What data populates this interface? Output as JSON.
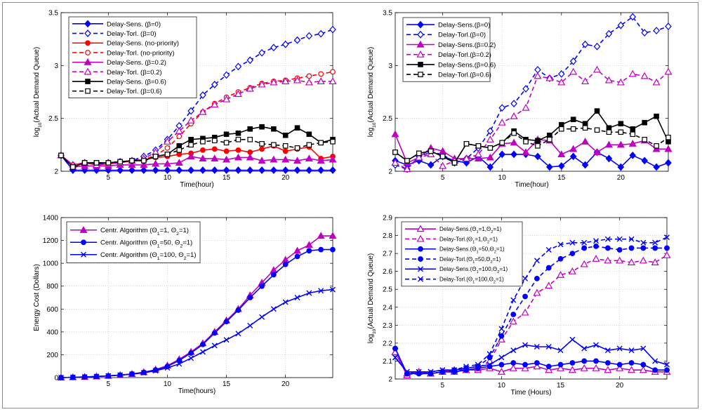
{
  "chart_data": [
    {
      "type": "line",
      "xlabel": "Time(hour)",
      "ylabel": "log10(Actual Demand Queue)",
      "ylabel_main": "log",
      "ylabel_sub": "10",
      "ylabel_rest": "(Actual Demand Queue)",
      "xlim": [
        1,
        24
      ],
      "ylim": [
        2,
        3.5
      ],
      "xticks": [
        5,
        10,
        15,
        20
      ],
      "yticks": [
        2,
        2.5,
        3,
        3.5
      ],
      "ytick_labels": [
        "2",
        "2.5",
        "3",
        "3.5"
      ],
      "grid": true,
      "legend_position": "top-left",
      "series": [
        {
          "name": "Delay-Sens. (β=0)",
          "color": "#0000ff",
          "dash": "solid",
          "marker": "diamond",
          "values": [
            2.15,
            2.01,
            2.01,
            2.01,
            2.01,
            2.01,
            2.01,
            2.01,
            2.01,
            2.01,
            2.01,
            2.01,
            2.01,
            2.01,
            2.01,
            2.01,
            2.01,
            2.01,
            2.01,
            2.01,
            2.01,
            2.01,
            2.01,
            2.01
          ]
        },
        {
          "name": "Delay-Torl. (β=0)",
          "color": "#0000ff",
          "dash": "dashed",
          "marker": "diamond-open",
          "values": [
            2.15,
            2.06,
            2.08,
            2.07,
            2.08,
            2.09,
            2.1,
            2.14,
            2.2,
            2.3,
            2.43,
            2.57,
            2.72,
            2.82,
            2.91,
            2.99,
            3.05,
            3.12,
            3.17,
            3.2,
            3.24,
            3.28,
            3.3,
            3.34
          ]
        },
        {
          "name": "Delay-Sens. (no-priority)",
          "color": "#ff0000",
          "dash": "solid",
          "marker": "circle",
          "values": [
            2.15,
            2.06,
            2.08,
            2.06,
            2.07,
            2.08,
            2.1,
            2.11,
            2.13,
            2.14,
            2.16,
            2.17,
            2.2,
            2.21,
            2.19,
            2.2,
            2.18,
            2.21,
            2.24,
            2.19,
            2.21,
            2.23,
            2.12,
            2.14
          ]
        },
        {
          "name": "Delay-Torl. (no-priority)",
          "color": "#ff0000",
          "dash": "dashed",
          "marker": "circle-open",
          "values": [
            2.15,
            2.06,
            2.08,
            2.06,
            2.07,
            2.08,
            2.1,
            2.11,
            2.15,
            2.22,
            2.33,
            2.45,
            2.56,
            2.64,
            2.7,
            2.75,
            2.79,
            2.83,
            2.85,
            2.86,
            2.88,
            2.9,
            2.92,
            2.94
          ]
        },
        {
          "name": "Delay-Sens. (β=0.2)",
          "color": "#c000c0",
          "dash": "solid",
          "marker": "triangle",
          "values": [
            2.15,
            2.04,
            2.05,
            2.05,
            2.05,
            2.06,
            2.06,
            2.06,
            2.07,
            2.07,
            2.08,
            2.14,
            2.12,
            2.12,
            2.11,
            2.13,
            2.13,
            2.1,
            2.11,
            2.11,
            2.1,
            2.12,
            2.1,
            2.11
          ]
        },
        {
          "name": "Delay-Torl. (β=0.2)",
          "color": "#c000c0",
          "dash": "dashed",
          "marker": "triangle-open",
          "values": [
            2.15,
            2.06,
            2.08,
            2.06,
            2.07,
            2.08,
            2.1,
            2.12,
            2.18,
            2.28,
            2.38,
            2.48,
            2.56,
            2.63,
            2.68,
            2.73,
            2.78,
            2.82,
            2.84,
            2.85,
            2.86,
            2.84,
            2.85,
            2.85
          ]
        },
        {
          "name": "Delay-Sens. (β=0.6)",
          "color": "#000000",
          "dash": "solid",
          "marker": "square",
          "values": [
            2.15,
            2.04,
            2.08,
            2.08,
            2.08,
            2.09,
            2.1,
            2.1,
            2.14,
            2.16,
            2.24,
            2.3,
            2.31,
            2.32,
            2.35,
            2.36,
            2.4,
            2.42,
            2.4,
            2.34,
            2.41,
            2.35,
            2.27,
            2.3
          ]
        },
        {
          "name": "Delay-Torl. (β=0.6)",
          "color": "#000000",
          "dash": "dashed",
          "marker": "square-open",
          "values": [
            2.15,
            2.04,
            2.08,
            2.08,
            2.08,
            2.09,
            2.1,
            2.1,
            2.14,
            2.16,
            2.2,
            2.25,
            2.28,
            2.29,
            2.27,
            2.3,
            2.3,
            2.26,
            2.25,
            2.24,
            2.22,
            2.25,
            2.27,
            2.28
          ]
        }
      ]
    },
    {
      "type": "line",
      "xlabel": "Time(hour)",
      "ylabel": "log10(Actual Demand Queue)",
      "ylabel_main": "log",
      "ylabel_sub": "10",
      "ylabel_rest": "(Actual Demand Queue)",
      "xlim": [
        1,
        24
      ],
      "ylim": [
        2,
        3.5
      ],
      "xticks": [
        5,
        10,
        15,
        20
      ],
      "yticks": [
        2,
        2.5,
        3,
        3.5
      ],
      "ytick_labels": [
        "2",
        "2.5",
        "3",
        "3.5"
      ],
      "grid": true,
      "legend_position": "top-left",
      "series": [
        {
          "name": "Delay-Sens.(β=0)",
          "color": "#0000ff",
          "dash": "solid",
          "marker": "diamond",
          "values": [
            2.1,
            2.06,
            2.1,
            2.06,
            2.14,
            2.1,
            2.08,
            2.14,
            2.04,
            2.16,
            2.16,
            2.16,
            2.14,
            2.04,
            2.05,
            2.14,
            2.06,
            2.18,
            2.12,
            2.04,
            2.15,
            2.1,
            2.04,
            2.08
          ]
        },
        {
          "name": "Delay-Torl.(β=0)",
          "color": "#0000ff",
          "dash": "dashed",
          "marker": "diamond-open",
          "values": [
            2.06,
            2.02,
            2.14,
            2.18,
            2.16,
            2.08,
            2.12,
            2.22,
            2.38,
            2.6,
            2.64,
            2.78,
            2.96,
            2.88,
            2.92,
            3.04,
            3.2,
            3.18,
            3.3,
            3.38,
            3.46,
            3.31,
            3.33,
            3.37
          ]
        },
        {
          "name": "Delay-Sens.(β=0.2)",
          "color": "#c000c0",
          "dash": "solid",
          "marker": "triangle",
          "values": [
            2.35,
            2.08,
            2.13,
            2.22,
            2.19,
            2.12,
            2.12,
            2.12,
            2.13,
            2.26,
            2.27,
            2.18,
            2.3,
            2.29,
            2.16,
            2.21,
            2.28,
            2.18,
            2.25,
            2.25,
            2.26,
            2.29,
            2.21,
            2.21
          ]
        },
        {
          "name": "Delay-Torl.(β=0.2)",
          "color": "#c000c0",
          "dash": "dashed",
          "marker": "triangle-open",
          "values": [
            2.08,
            2.02,
            2.13,
            2.16,
            2.05,
            2.1,
            2.12,
            2.16,
            2.3,
            2.46,
            2.52,
            2.6,
            2.9,
            2.88,
            2.84,
            2.94,
            2.85,
            2.96,
            2.86,
            2.84,
            2.92,
            2.9,
            2.84,
            2.94
          ]
        },
        {
          "name": "Delay-Sens.(β=0.6)",
          "color": "#000000",
          "dash": "solid",
          "marker": "square",
          "values": [
            2.18,
            2.1,
            2.17,
            2.19,
            2.14,
            2.08,
            2.26,
            2.24,
            2.22,
            2.27,
            2.38,
            2.3,
            2.29,
            2.34,
            2.44,
            2.49,
            2.45,
            2.57,
            2.41,
            2.45,
            2.4,
            2.46,
            2.52,
            2.28
          ]
        },
        {
          "name": "Delay-Torl.(β=0.6)",
          "color": "#000000",
          "dash": "dashed",
          "marker": "square-open",
          "values": [
            2.18,
            2.1,
            2.17,
            2.19,
            2.14,
            2.08,
            2.26,
            2.24,
            2.22,
            2.27,
            2.36,
            2.28,
            2.24,
            2.3,
            2.4,
            2.4,
            2.41,
            2.39,
            2.37,
            2.37,
            2.35,
            2.3,
            2.24,
            2.32
          ]
        }
      ]
    },
    {
      "type": "line",
      "xlabel": "Time(hours)",
      "ylabel": "Energy Cost (Dollars)",
      "xlim": [
        1,
        24
      ],
      "ylim": [
        0,
        1400
      ],
      "xticks": [
        5,
        10,
        15,
        20
      ],
      "yticks": [
        0,
        200,
        400,
        600,
        800,
        1000,
        1200,
        1400
      ],
      "ytick_labels": [
        "0",
        "200",
        "400",
        "600",
        "800",
        "1000",
        "1200",
        "1400"
      ],
      "grid": true,
      "legend_position": "top-left",
      "series": [
        {
          "name": "Centr. Algorithm (Θ1=1, Θ2=1)",
          "name_parts": [
            "Centr. Algorithm (Θ",
            "1",
            "=1, Θ",
            "2",
            "=1)"
          ],
          "color": "#c000c0",
          "dash": "solid",
          "marker": "triangle",
          "values": [
            0,
            3,
            6,
            10,
            15,
            22,
            32,
            47,
            70,
            105,
            160,
            225,
            300,
            400,
            500,
            600,
            720,
            830,
            940,
            1030,
            1110,
            1160,
            1240,
            1240
          ]
        },
        {
          "name": "Centr. Algorithm (Θ1=50, Θ2=1)",
          "name_parts": [
            "Centr. Algorithm (Θ",
            "1",
            "=50, Θ",
            "2",
            "=1)"
          ],
          "color": "#0000ff",
          "dash": "solid",
          "marker": "circle",
          "values": [
            0,
            3,
            6,
            10,
            15,
            22,
            32,
            45,
            67,
            98,
            150,
            215,
            290,
            390,
            490,
            590,
            700,
            800,
            900,
            990,
            1060,
            1110,
            1120,
            1120
          ]
        },
        {
          "name": "Centr. Algorithm (Θ1=100, Θ2=1)",
          "name_parts": [
            "Centr. Algorithm (Θ",
            "1",
            "=100, Θ",
            "2",
            "=1)"
          ],
          "color": "#0000ff",
          "dash": "solid",
          "marker": "x",
          "values": [
            0,
            3,
            6,
            10,
            15,
            22,
            30,
            42,
            60,
            85,
            120,
            170,
            225,
            280,
            330,
            385,
            455,
            530,
            600,
            660,
            700,
            740,
            760,
            770
          ]
        }
      ]
    },
    {
      "type": "line",
      "xlabel": "Time (Hours)",
      "ylabel": "log10(Actual Demand Queue)",
      "ylabel_main": "log",
      "ylabel_sub": "10",
      "ylabel_rest": "(Actual Demand Queue)",
      "xlim": [
        1,
        24
      ],
      "ylim": [
        2,
        2.9
      ],
      "xticks": [
        5,
        10,
        15,
        20
      ],
      "yticks": [
        2,
        2.1,
        2.2,
        2.3,
        2.4,
        2.5,
        2.6,
        2.7,
        2.8,
        2.9
      ],
      "ytick_labels": [
        "2",
        "2.1",
        "2.2",
        "2.3",
        "2.4",
        "2.5",
        "2.6",
        "2.7",
        "2.8",
        "2.9"
      ],
      "grid": true,
      "legend_position": "top-left",
      "series": [
        {
          "name": "Delay-Sens.(Θ1=1,Θ2=1)",
          "name_parts": [
            "Delay-Sens.(Θ",
            "1",
            "=1,Θ",
            "2",
            "=1)"
          ],
          "color": "#c000c0",
          "dash": "solid",
          "marker": "triangle-open",
          "values": [
            2.15,
            2.02,
            2.04,
            2.03,
            2.04,
            2.04,
            2.05,
            2.05,
            2.06,
            2.04,
            2.06,
            2.06,
            2.07,
            2.05,
            2.06,
            2.05,
            2.06,
            2.06,
            2.05,
            2.06,
            2.05,
            2.05,
            2.04,
            2.04
          ]
        },
        {
          "name": "Delay-Torl.(Θ1=1,Θ2=1)",
          "name_parts": [
            "Delay-Torl.(Θ",
            "1",
            "=1,Θ",
            "2",
            "=1)"
          ],
          "color": "#c000c0",
          "dash": "dashed",
          "marker": "triangle-open",
          "values": [
            2.15,
            2.03,
            2.04,
            2.03,
            2.04,
            2.05,
            2.05,
            2.06,
            2.1,
            2.22,
            2.32,
            2.37,
            2.48,
            2.52,
            2.58,
            2.6,
            2.64,
            2.67,
            2.66,
            2.66,
            2.65,
            2.66,
            2.65,
            2.69
          ]
        },
        {
          "name": "Delay-Sens.(Θ1=50,Θ2=1)",
          "name_parts": [
            "Delay-Sens.(Θ",
            "1",
            "=50,Θ",
            "2",
            "=1)"
          ],
          "color": "#0000ff",
          "dash": "solid",
          "marker": "circle",
          "values": [
            2.17,
            2.03,
            2.03,
            2.03,
            2.04,
            2.04,
            2.05,
            2.06,
            2.07,
            2.08,
            2.09,
            2.08,
            2.09,
            2.07,
            2.08,
            2.09,
            2.1,
            2.1,
            2.09,
            2.08,
            2.09,
            2.08,
            2.05,
            2.05
          ]
        },
        {
          "name": "Delay-Torl.(Θ1=50,Θ2=1)",
          "name_parts": [
            "Delay-Torl.(Θ",
            "1",
            "=50,Θ",
            "2",
            "=1)"
          ],
          "color": "#0000ff",
          "dash": "dashed",
          "marker": "circle",
          "values": [
            2.17,
            2.03,
            2.03,
            2.03,
            2.04,
            2.05,
            2.06,
            2.07,
            2.12,
            2.24,
            2.36,
            2.46,
            2.56,
            2.62,
            2.67,
            2.7,
            2.73,
            2.74,
            2.73,
            2.72,
            2.73,
            2.73,
            2.73,
            2.73
          ]
        },
        {
          "name": "Delay-Sens.(Θ1=100,Θ2=1)",
          "name_parts": [
            "Delay-Sens.(Θ",
            "1",
            "=100,Θ",
            "2",
            "=1)"
          ],
          "color": "#0000ff",
          "dash": "solid",
          "marker": "x",
          "values": [
            2.12,
            2.04,
            2.04,
            2.04,
            2.05,
            2.05,
            2.06,
            2.07,
            2.08,
            2.12,
            2.16,
            2.19,
            2.18,
            2.18,
            2.16,
            2.22,
            2.17,
            2.19,
            2.16,
            2.17,
            2.16,
            2.17,
            2.1,
            2.08
          ]
        },
        {
          "name": "Delay-Torl.(Θ1=100,Θ2=1)",
          "name_parts": [
            "Delay-Torl.(Θ",
            "1",
            "=100,Θ",
            "2",
            "=1)"
          ],
          "color": "#0000ff",
          "dash": "dashed",
          "marker": "x",
          "values": [
            2.12,
            2.04,
            2.04,
            2.04,
            2.05,
            2.05,
            2.07,
            2.08,
            2.14,
            2.28,
            2.44,
            2.56,
            2.66,
            2.72,
            2.75,
            2.76,
            2.76,
            2.77,
            2.78,
            2.78,
            2.78,
            2.76,
            2.76,
            2.79
          ]
        }
      ]
    }
  ]
}
